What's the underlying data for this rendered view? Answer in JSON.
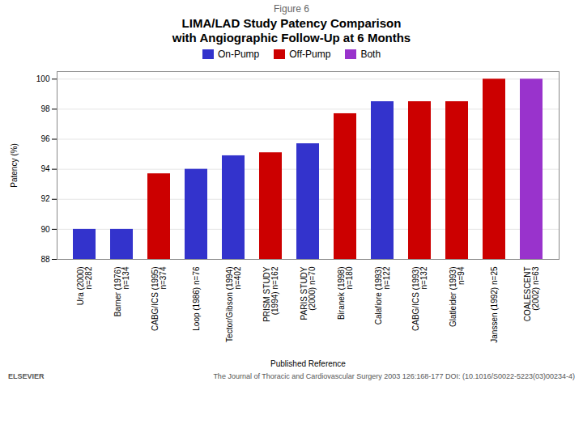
{
  "chart_data": {
    "type": "bar",
    "title": "LIMA/LAD Study Patency Comparison\nwith Angiographic Follow-Up at 6 Months",
    "x_label": "Published Reference",
    "y_label": "Patency (%)",
    "categories": [
      "Ura (2000)\nn=282",
      "Barner (1976)\nn=134",
      "CABG/ICS (1995)\nn=374",
      "Loop (1986) n=76",
      "Tector/Gibson (1994)\nn=402",
      "PRISM STUDY\n(1994) n=162",
      "PARIS STUDY\n(2000) n=70",
      "Biranek (1998)\nn=180",
      "Calafiore (1993)\nn=122",
      "CABG/ICS (1993)\nn=132",
      "Glatleider (1993)\nn=94",
      "Janssen (1992) n=25",
      "COALESCENT\n(2002) n=63"
    ],
    "series": [
      {
        "name": "On-Pump",
        "color": "#3333cc",
        "values": [
          90.0,
          90.0,
          null,
          94.0,
          94.9,
          null,
          95.7,
          null,
          98.5,
          null,
          null,
          null,
          null
        ]
      },
      {
        "name": "Off-Pump",
        "color": "#cc0000",
        "values": [
          null,
          null,
          93.7,
          null,
          null,
          95.1,
          null,
          97.7,
          null,
          98.5,
          98.5,
          100.0,
          null
        ]
      },
      {
        "name": "Both",
        "color": "#9933cc",
        "values": [
          null,
          null,
          null,
          null,
          null,
          null,
          null,
          null,
          null,
          null,
          null,
          null,
          100.0
        ]
      }
    ],
    "ylim": [
      88.0,
      100.5
    ],
    "yticks": [
      88,
      90,
      92,
      94,
      96,
      98,
      100
    ],
    "grid": true,
    "annotations": [
      "Figure 6",
      "ELSEVIER",
      "The Journal of Thoracic and Cardiovascular Surgery 2003 126:168-177 DOI: (10.1016/S0022-5223(03)00234-4)"
    ]
  }
}
